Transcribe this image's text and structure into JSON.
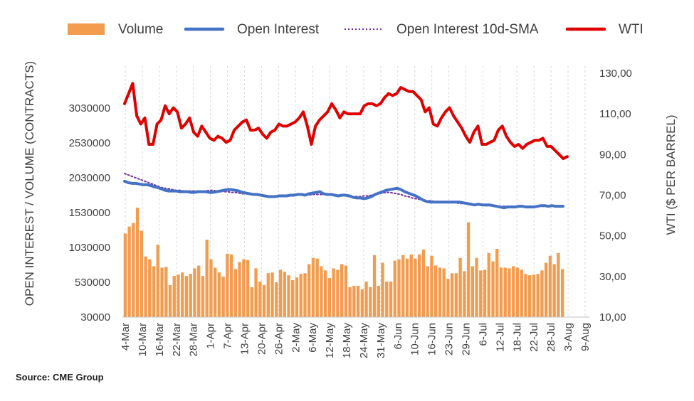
{
  "source": "Source: CME Group",
  "chart_data": {
    "type": "bar+line",
    "legend": {
      "placement": "top",
      "items": [
        {
          "label": "Volume",
          "kind": "bar",
          "color": "#F39C4E"
        },
        {
          "label": "Open Interest",
          "kind": "line",
          "color": "#4472C4"
        },
        {
          "label": "Open Interest 10d-SMA",
          "kind": "dotted",
          "color": "#7030A0"
        },
        {
          "label": "WTI",
          "kind": "line",
          "color": "#E00000"
        }
      ]
    },
    "y_left": {
      "label": "OPEN INTEREST / VOLUME (CONTRACTS)",
      "ticks": [
        "3030000",
        "2530000",
        "2030000",
        "1530000",
        "1030000",
        "530000",
        "30000"
      ],
      "range": [
        30000,
        3530000
      ]
    },
    "y_right": {
      "label": "WTI ($ PER BARREL)",
      "ticks": [
        "130,00",
        "110,00",
        "90,00",
        "70,00",
        "50,00",
        "30,00",
        "10,00"
      ],
      "range": [
        10,
        130
      ]
    },
    "x_ticks": [
      "4-Mar",
      "10-Mar",
      "16-Mar",
      "22-Mar",
      "28-Mar",
      "1-Apr",
      "7-Apr",
      "13-Apr",
      "20-Apr",
      "26-Apr",
      "2-May",
      "6-May",
      "12-May",
      "18-May",
      "24-May",
      "31-May",
      "6-Jun",
      "10-Jun",
      "16-Jun",
      "23-Jun",
      "29-Jun",
      "6-Jul",
      "12-Jul",
      "18-Jul",
      "22-Jul",
      "28-Jul",
      "3-Aug",
      "9-Aug"
    ],
    "grid": "vertical-dashed",
    "series": [
      {
        "name": "Volume",
        "axis": "left",
        "type": "bar",
        "values": [
          1230000,
          1330000,
          1380000,
          1600000,
          1270000,
          900000,
          860000,
          760000,
          1070000,
          740000,
          750000,
          490000,
          620000,
          640000,
          670000,
          620000,
          650000,
          730000,
          770000,
          620000,
          1140000,
          860000,
          740000,
          670000,
          610000,
          940000,
          930000,
          720000,
          820000,
          860000,
          850000,
          460000,
          730000,
          540000,
          490000,
          660000,
          670000,
          530000,
          710000,
          680000,
          630000,
          560000,
          600000,
          650000,
          660000,
          790000,
          880000,
          870000,
          760000,
          700000,
          590000,
          730000,
          710000,
          790000,
          770000,
          460000,
          480000,
          480000,
          430000,
          540000,
          460000,
          920000,
          480000,
          810000,
          540000,
          540000,
          840000,
          860000,
          920000,
          870000,
          930000,
          870000,
          930000,
          1000000,
          760000,
          910000,
          770000,
          740000,
          730000,
          580000,
          660000,
          660000,
          880000,
          690000,
          1390000,
          760000,
          880000,
          700000,
          710000,
          950000,
          830000,
          1010000,
          740000,
          740000,
          730000,
          760000,
          740000,
          710000,
          650000,
          630000,
          640000,
          650000,
          700000,
          810000,
          910000,
          790000,
          950000,
          720000
        ]
      },
      {
        "name": "Open Interest",
        "axis": "left",
        "type": "line",
        "values": [
          1980000,
          1960000,
          1950000,
          1950000,
          1940000,
          1930000,
          1930000,
          1920000,
          1900000,
          1890000,
          1870000,
          1850000,
          1840000,
          1840000,
          1840000,
          1830000,
          1830000,
          1830000,
          1820000,
          1820000,
          1830000,
          1830000,
          1830000,
          1820000,
          1820000,
          1830000,
          1840000,
          1850000,
          1860000,
          1860000,
          1850000,
          1840000,
          1820000,
          1810000,
          1800000,
          1790000,
          1790000,
          1780000,
          1770000,
          1760000,
          1760000,
          1760000,
          1770000,
          1770000,
          1770000,
          1780000,
          1780000,
          1790000,
          1790000,
          1780000,
          1800000,
          1810000,
          1820000,
          1830000,
          1800000,
          1790000,
          1790000,
          1780000,
          1770000,
          1780000,
          1780000,
          1770000,
          1750000,
          1740000,
          1740000,
          1730000,
          1740000,
          1760000,
          1790000,
          1810000,
          1830000,
          1850000,
          1860000,
          1870000,
          1880000,
          1860000,
          1830000,
          1810000,
          1790000,
          1770000,
          1740000,
          1710000,
          1690000,
          1680000,
          1680000,
          1680000,
          1680000,
          1680000,
          1680000,
          1680000,
          1680000,
          1680000,
          1670000,
          1660000,
          1650000,
          1640000,
          1650000,
          1640000,
          1640000,
          1640000,
          1630000,
          1620000,
          1610000,
          1600000,
          1610000,
          1610000,
          1610000,
          1620000,
          1620000,
          1610000,
          1610000,
          1610000,
          1620000,
          1630000,
          1630000,
          1620000,
          1630000,
          1620000,
          1620000,
          1620000
        ]
      },
      {
        "name": "Open Interest 10d-SMA",
        "axis": "left",
        "type": "dotted",
        "values": [
          2090000,
          2070000,
          2050000,
          2030000,
          2010000,
          1990000,
          1970000,
          1950000,
          1930000,
          1910000,
          1890000,
          1880000,
          1870000,
          1860000,
          1850000,
          1850000,
          1840000,
          1840000,
          1840000,
          1840000,
          1840000,
          1840000,
          1840000,
          1850000,
          1850000,
          1840000,
          1840000,
          1830000,
          1830000,
          1820000,
          1820000,
          1810000,
          1800000,
          1800000,
          1790000,
          1790000,
          1780000,
          1780000,
          1780000,
          1770000,
          1770000,
          1770000,
          1770000,
          1770000,
          1770000,
          1780000,
          1780000,
          1780000,
          1780000,
          1780000,
          1780000,
          1790000,
          1790000,
          1790000,
          1790000,
          1790000,
          1790000,
          1780000,
          1780000,
          1780000,
          1770000,
          1760000,
          1760000,
          1760000,
          1760000,
          1770000,
          1770000,
          1780000,
          1790000,
          1800000,
          1810000,
          1820000,
          1820000,
          1810000,
          1800000,
          1790000,
          1770000,
          1760000,
          1740000,
          1730000,
          1720000,
          1710000,
          1700000,
          1700000,
          1690000,
          1690000,
          1690000,
          1680000,
          1680000,
          1680000,
          1670000,
          1660000,
          1660000,
          1650000,
          1650000,
          1650000,
          1640000,
          1640000,
          1630000,
          1630000,
          1620000,
          1620000,
          1620000,
          1620000,
          1620000,
          1620000,
          1620000,
          1620000,
          1620000,
          1620000,
          1620000,
          1620000,
          1620000,
          1620000,
          1620000,
          1620000,
          1620000,
          1620000,
          1620000,
          1620000
        ]
      },
      {
        "name": "WTI",
        "axis": "right",
        "type": "line",
        "values": [
          115,
          120,
          125,
          109,
          105,
          108,
          95,
          95,
          105,
          107,
          114,
          110,
          113,
          111,
          103,
          105,
          108,
          101,
          99,
          104,
          101,
          98,
          97,
          99,
          98,
          96,
          97,
          102,
          104,
          106,
          107,
          102,
          102,
          103,
          100,
          98,
          101,
          102,
          105,
          104,
          104,
          105,
          106,
          108,
          111,
          104,
          95,
          104,
          107,
          109,
          111,
          115,
          112,
          108,
          111,
          110,
          110,
          110,
          110,
          114,
          115,
          115,
          114,
          115,
          118,
          120,
          119,
          120,
          123,
          122,
          121,
          121,
          119,
          117,
          111,
          113,
          105,
          104,
          108,
          111,
          113,
          109,
          106,
          103,
          99,
          96,
          101,
          104,
          95,
          95,
          96,
          97,
          102,
          104,
          99,
          96,
          94,
          95,
          93,
          95,
          96,
          97,
          97,
          98,
          94,
          94,
          92,
          90,
          88,
          89
        ]
      }
    ]
  }
}
